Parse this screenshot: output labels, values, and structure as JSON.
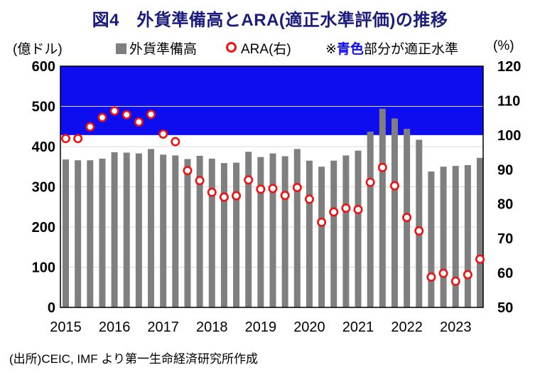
{
  "title": "図4　外貨準備高とARA(適正水準評価)の推移",
  "legend": {
    "bars_label": "外貨準備高",
    "ara_label": "ARA(右)",
    "note_prefix": "※",
    "note_highlight": "青色",
    "note_suffix": "部分が適正水準"
  },
  "axes": {
    "left_unit": "(億ドル)",
    "right_unit": "(%)"
  },
  "source": "(出所)CEIC, IMF より第一生命経済研究所作成",
  "colors": {
    "title_navy": "#1b1b7e",
    "band_blue": "#0d0df0",
    "bar_gray": "#7f7f7f",
    "ara_red": "#ee1111",
    "grid": "#d9d9d9",
    "border": "#000000"
  },
  "chart_data": {
    "type": "bar",
    "title": "図4 外貨準備高とARA(適正水準評価)の推移",
    "x": [
      "2015Q1",
      "2015Q2",
      "2015Q3",
      "2015Q4",
      "2016Q1",
      "2016Q2",
      "2016Q3",
      "2016Q4",
      "2017Q1",
      "2017Q2",
      "2017Q3",
      "2017Q4",
      "2018Q1",
      "2018Q2",
      "2018Q3",
      "2018Q4",
      "2019Q1",
      "2019Q2",
      "2019Q3",
      "2019Q4",
      "2020Q1",
      "2020Q2",
      "2020Q3",
      "2020Q4",
      "2021Q1",
      "2021Q2",
      "2021Q3",
      "2021Q4",
      "2022Q1",
      "2022Q2",
      "2022Q3",
      "2022Q4",
      "2023Q1",
      "2023Q2",
      "2023Q3"
    ],
    "year_labels": [
      "2015",
      "2016",
      "2017",
      "2018",
      "2019",
      "2020",
      "2021",
      "2022",
      "2023"
    ],
    "series": [
      {
        "name": "外貨準備高",
        "type": "bar",
        "axis": "left",
        "values": [
          368,
          366,
          366,
          370,
          386,
          385,
          383,
          394,
          380,
          378,
          369,
          377,
          370,
          359,
          360,
          387,
          374,
          383,
          376,
          394,
          365,
          350,
          365,
          378,
          390,
          437,
          494,
          470,
          444,
          417,
          338,
          350,
          352,
          354,
          372
        ]
      },
      {
        "name": "ARA(右)",
        "type": "scatter",
        "axis": "right",
        "values": [
          99.0,
          99.0,
          102.4,
          105.1,
          107.0,
          105.9,
          103.8,
          106.0,
          100.3,
          98.1,
          89.7,
          86.8,
          83.4,
          82.0,
          82.4,
          87.0,
          84.3,
          84.5,
          82.5,
          84.8,
          81.4,
          74.7,
          77.7,
          78.8,
          78.4,
          86.3,
          90.6,
          85.3,
          76.1,
          72.2,
          58.8,
          59.9,
          57.6,
          59.5,
          64.0
        ]
      }
    ],
    "left_axis": {
      "label": "(億ドル)",
      "range": [
        0,
        600
      ],
      "ticks": [
        0,
        100,
        200,
        300,
        400,
        500,
        600
      ]
    },
    "right_axis": {
      "label": "(%)",
      "range": [
        50,
        120
      ],
      "ticks": [
        50,
        60,
        70,
        80,
        90,
        100,
        110,
        120
      ]
    },
    "adequacy_band": {
      "axis": "right",
      "from": 100,
      "to": 120,
      "note": "青色部分が適正水準"
    },
    "grid": "horizontal gridlines at left-axis ticks",
    "legend_position": "top"
  }
}
